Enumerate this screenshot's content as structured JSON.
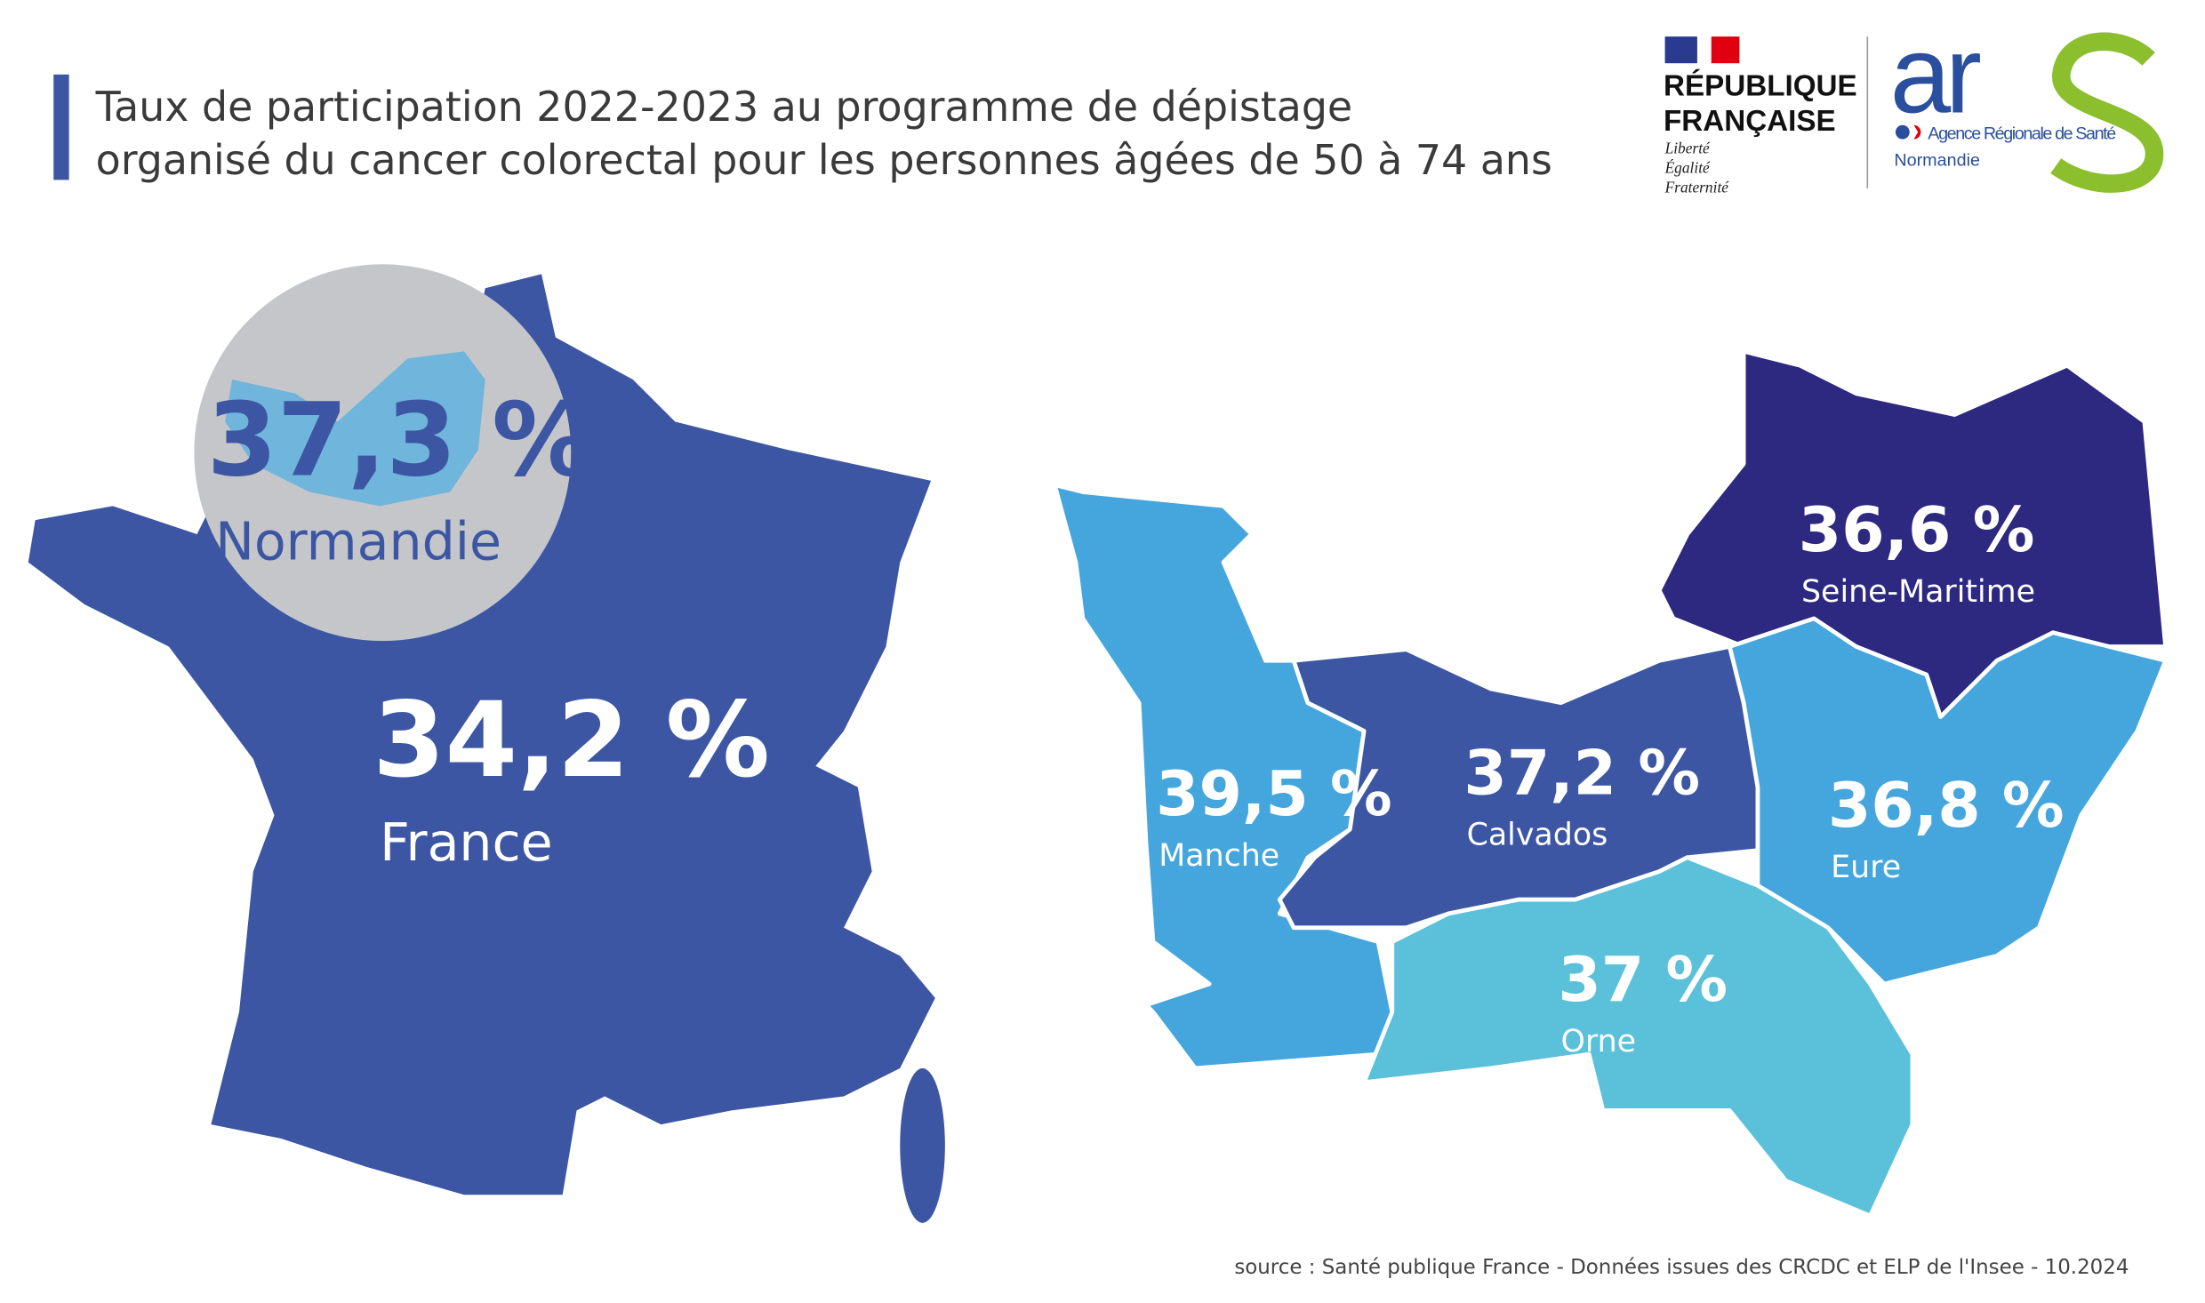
{
  "title": {
    "line1": "Taux de participation 2022-2023 au programme de dépistage",
    "line2": "organisé du cancer colorectal pour les personnes âgées de 50 à 74 ans"
  },
  "logos": {
    "republique": {
      "line1": "RÉPUBLIQUE",
      "line2": "FRANÇAISE",
      "motto": [
        "Liberté",
        "Égalité",
        "Fraternité"
      ]
    },
    "ars": {
      "wordmark": "ars",
      "name": "Agence Régionale de Santé",
      "region": "Normandie",
      "blue": "#2a4f9e",
      "green": "#8cbf2e"
    }
  },
  "france": {
    "value": "34,2 %",
    "label": "France",
    "color": "#3d56a3"
  },
  "normandie_inset": {
    "value": "37,3 %",
    "label": "Normandie"
  },
  "departments": [
    {
      "name": "Manche",
      "value": "39,5 %",
      "color": "#45a6de"
    },
    {
      "name": "Calvados",
      "value": "37,2 %",
      "color": "#3d56a3"
    },
    {
      "name": "Seine-Maritime",
      "value": "36,6 %",
      "color": "#2d2880"
    },
    {
      "name": "Eure",
      "value": "36,8 %",
      "color": "#45a6de"
    },
    {
      "name": "Orne",
      "value": "37 %",
      "color": "#5bc0da"
    }
  ],
  "source": "source : Santé publique France - Données issues des CRCDC et ELP de l'Insee - 10.2024"
}
